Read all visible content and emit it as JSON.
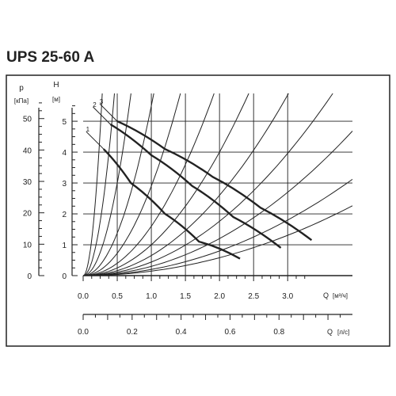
{
  "title": "UPS 25-60 A",
  "chart_data": {
    "type": "line",
    "title": "UPS 25-60 A",
    "axes": {
      "left_outer": {
        "label": "p",
        "unit": "[кПа]",
        "ticks": [
          "0",
          "10",
          "20",
          "30",
          "40",
          "50"
        ],
        "range": [
          0,
          58
        ]
      },
      "left_inner": {
        "label": "H",
        "unit": "[м]",
        "ticks": [
          "0",
          "1",
          "2",
          "3",
          "4",
          "5"
        ],
        "range": [
          0,
          5.9
        ]
      },
      "bottom_q_m3h": {
        "label": "Q",
        "unit": "[м³/ч]",
        "ticks": [
          "0.0",
          "0.5",
          "1.0",
          "1.5",
          "2.0",
          "2.5",
          "3.0"
        ],
        "range": [
          0,
          3.95
        ]
      },
      "bottom_q_ls": {
        "label": "Q",
        "unit": "[л/с]",
        "ticks": [
          "0.0",
          "0.2",
          "0.4",
          "0.6",
          "0.8"
        ],
        "range": [
          0,
          1.1
        ]
      }
    },
    "grid": true,
    "pump_curves": [
      {
        "name": "1",
        "q": [
          0.3,
          0.7,
          1.2,
          1.7,
          2.3
        ],
        "h": [
          4.1,
          3.0,
          2.0,
          1.1,
          0.55
        ]
      },
      {
        "name": "2",
        "q": [
          0.4,
          1.0,
          1.6,
          2.2,
          2.9
        ],
        "h": [
          4.9,
          3.9,
          2.9,
          1.9,
          0.9
        ]
      },
      {
        "name": "3",
        "q": [
          0.5,
          1.2,
          1.9,
          2.6,
          3.35
        ],
        "h": [
          5.0,
          4.1,
          3.2,
          2.2,
          1.15
        ]
      }
    ],
    "system_curves_k": [
      75,
      28,
      12,
      5.5,
      2.9,
      1.6,
      1.0,
      0.65,
      0.44,
      0.3,
      0.2,
      0.145
    ]
  },
  "colors": {
    "ink": "#222222",
    "grid": "#222222",
    "curve": "#222222"
  }
}
